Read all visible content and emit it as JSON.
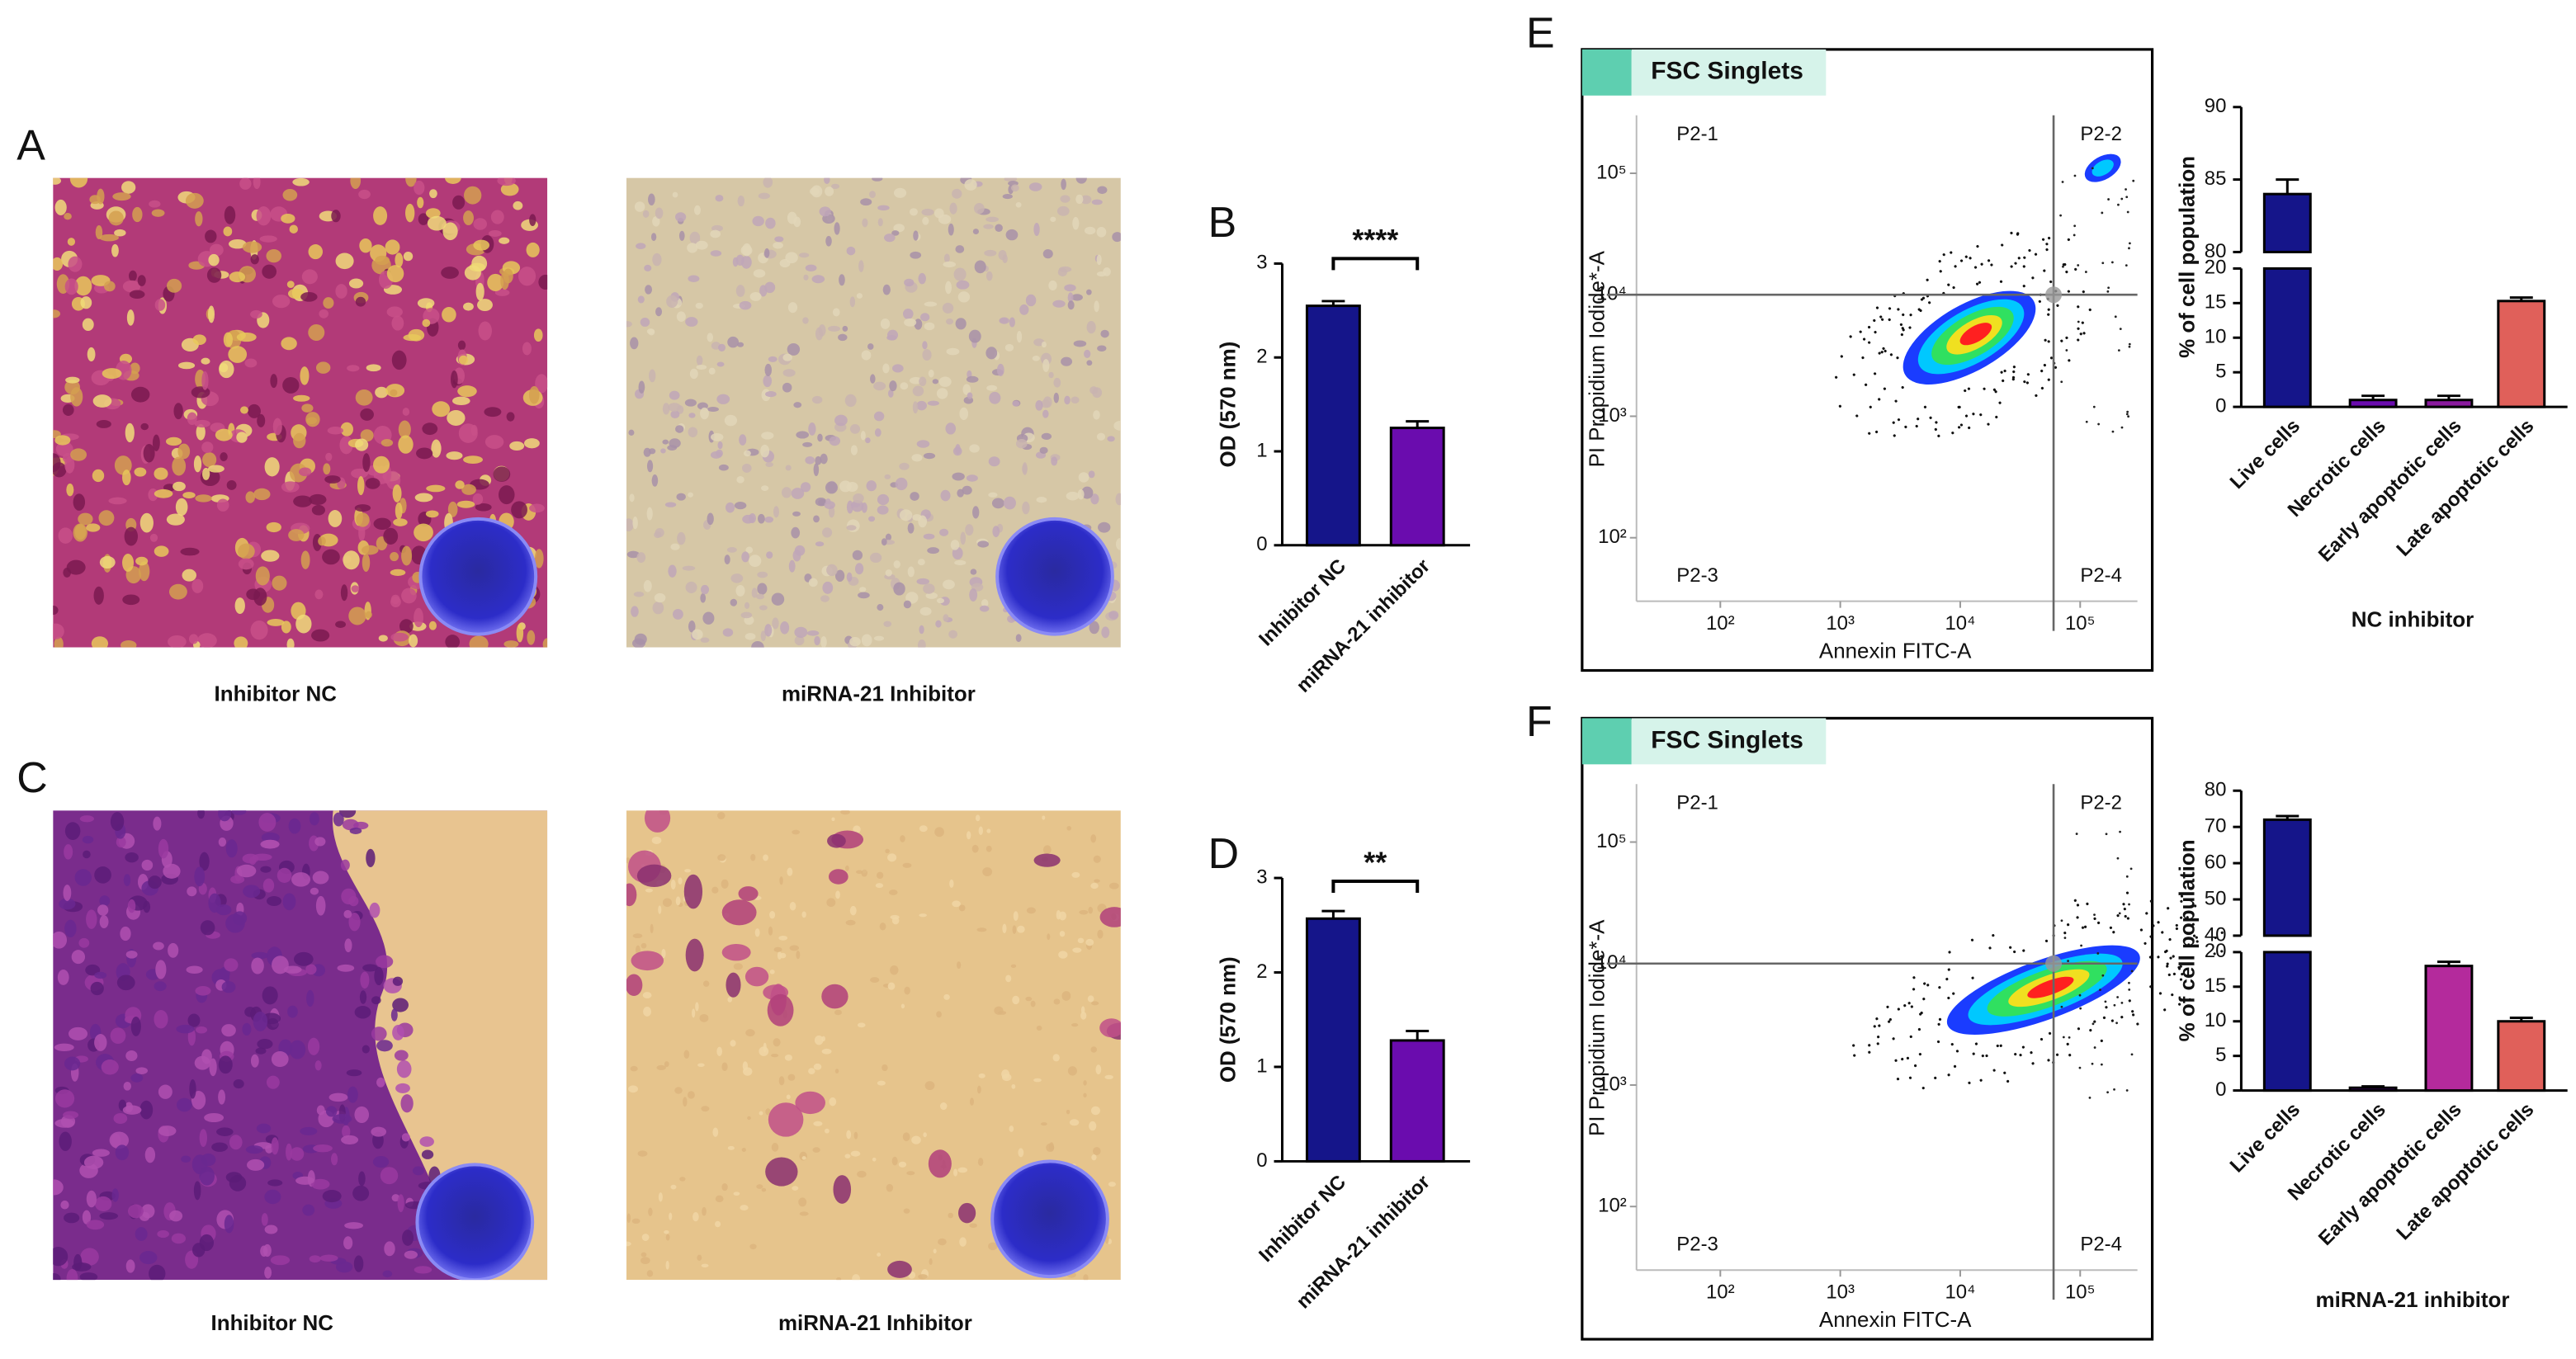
{
  "panels": [
    "A",
    "B",
    "C",
    "D",
    "E",
    "F"
  ],
  "captions": [
    "Inhibitor NC",
    "miRNA-21 Inhibitor",
    "Inhibitor NC",
    "miRNA-21 Inhibitor"
  ],
  "chart_data": [
    {
      "type": "bar",
      "ylabel": "OD (570 nm)",
      "categories": [
        "Inhibitor NC",
        "miRNA-21 inhibitor"
      ],
      "values": [
        2.55,
        1.25
      ],
      "errors": [
        0.05,
        0.07
      ],
      "colors": [
        "#15158a",
        "#6a0cae"
      ],
      "ylim": [
        0,
        3
      ],
      "yticks": [
        0,
        1,
        2,
        3
      ],
      "significance": "****"
    },
    {
      "type": "bar",
      "ylabel": "OD (570 nm)",
      "categories": [
        "Inhibitor NC",
        "miRNA-21 inhibitor"
      ],
      "values": [
        2.57,
        1.28
      ],
      "errors": [
        0.08,
        0.1
      ],
      "colors": [
        "#15158a",
        "#6a0cae"
      ],
      "ylim": [
        0,
        3
      ],
      "yticks": [
        0,
        1,
        2,
        3
      ],
      "significance": "**"
    },
    {
      "type": "flow",
      "title": "FSC Singlets",
      "xlabel": "Annexin FITC-A",
      "ylabel": "PI Propidium Iodide*-A",
      "quadrants": [
        "P2-1",
        "P2-2",
        "P2-3",
        "P2-4"
      ],
      "log": true,
      "xlim": [
        20,
        300000
      ],
      "ylim": [
        30,
        300000
      ],
      "xticks": [
        {
          "value": 100,
          "label": "10²"
        },
        {
          "value": 1000,
          "label": "10³"
        },
        {
          "value": 10000,
          "label": "10⁴"
        },
        {
          "value": 100000,
          "label": "10⁵"
        }
      ],
      "yticks": [
        {
          "value": 100,
          "label": "10²"
        },
        {
          "value": 1000,
          "label": "10³"
        },
        {
          "value": 10000,
          "label": "10⁴"
        },
        {
          "value": 100000,
          "label": "10⁵"
        }
      ],
      "gate": {
        "x": 60000,
        "y": 10000
      }
    },
    {
      "type": "bar",
      "ylabel": "% of cell population",
      "xlabel": "NC inhibitor",
      "categories": [
        "Live cells",
        "Necrotic cells",
        "Early apoptotic cells",
        "Late apoptotic cells"
      ],
      "values": [
        84,
        1,
        1,
        15.3
      ],
      "errors": [
        1,
        0.6,
        0.6,
        0.5
      ],
      "colors": [
        "#15158a",
        "#6a0cae",
        "#8a1a9e",
        "#e0605a"
      ],
      "segments": [
        {
          "ylim": [
            0,
            20
          ],
          "yticks": [
            0,
            5,
            10,
            15,
            20
          ]
        },
        {
          "ylim": [
            80,
            90
          ],
          "yticks": [
            80,
            85,
            90
          ]
        }
      ]
    },
    {
      "type": "flow",
      "title": "FSC Singlets",
      "xlabel": "Annexin FITC-A",
      "ylabel": "PI Propidium Iodide*-A",
      "quadrants": [
        "P2-1",
        "P2-2",
        "P2-3",
        "P2-4"
      ],
      "log": true,
      "xlim": [
        20,
        300000
      ],
      "ylim": [
        30,
        300000
      ],
      "xticks": [
        {
          "value": 100,
          "label": "10²"
        },
        {
          "value": 1000,
          "label": "10³"
        },
        {
          "value": 10000,
          "label": "10⁴"
        },
        {
          "value": 100000,
          "label": "10⁵"
        }
      ],
      "yticks": [
        {
          "value": 100,
          "label": "10²"
        },
        {
          "value": 1000,
          "label": "10³"
        },
        {
          "value": 10000,
          "label": "10⁴"
        },
        {
          "value": 100000,
          "label": "10⁵"
        }
      ],
      "gate": {
        "x": 60000,
        "y": 10000
      }
    },
    {
      "type": "bar",
      "ylabel": "% of cell population",
      "xlabel": "miRNA-21 inhibitor",
      "categories": [
        "Live cells",
        "Necrotic cells",
        "Early apoptotic cells",
        "Late apoptotic cells"
      ],
      "values": [
        72,
        0.4,
        18,
        10
      ],
      "errors": [
        1,
        0.2,
        0.6,
        0.5
      ],
      "colors": [
        "#15158a",
        "#6a0cae",
        "#b42a9c",
        "#e0605a"
      ],
      "segments": [
        {
          "ylim": [
            0,
            20
          ],
          "yticks": [
            0,
            5,
            10,
            15,
            20
          ]
        },
        {
          "ylim": [
            40,
            80
          ],
          "yticks": [
            40,
            50,
            60,
            70,
            80
          ]
        }
      ]
    }
  ]
}
